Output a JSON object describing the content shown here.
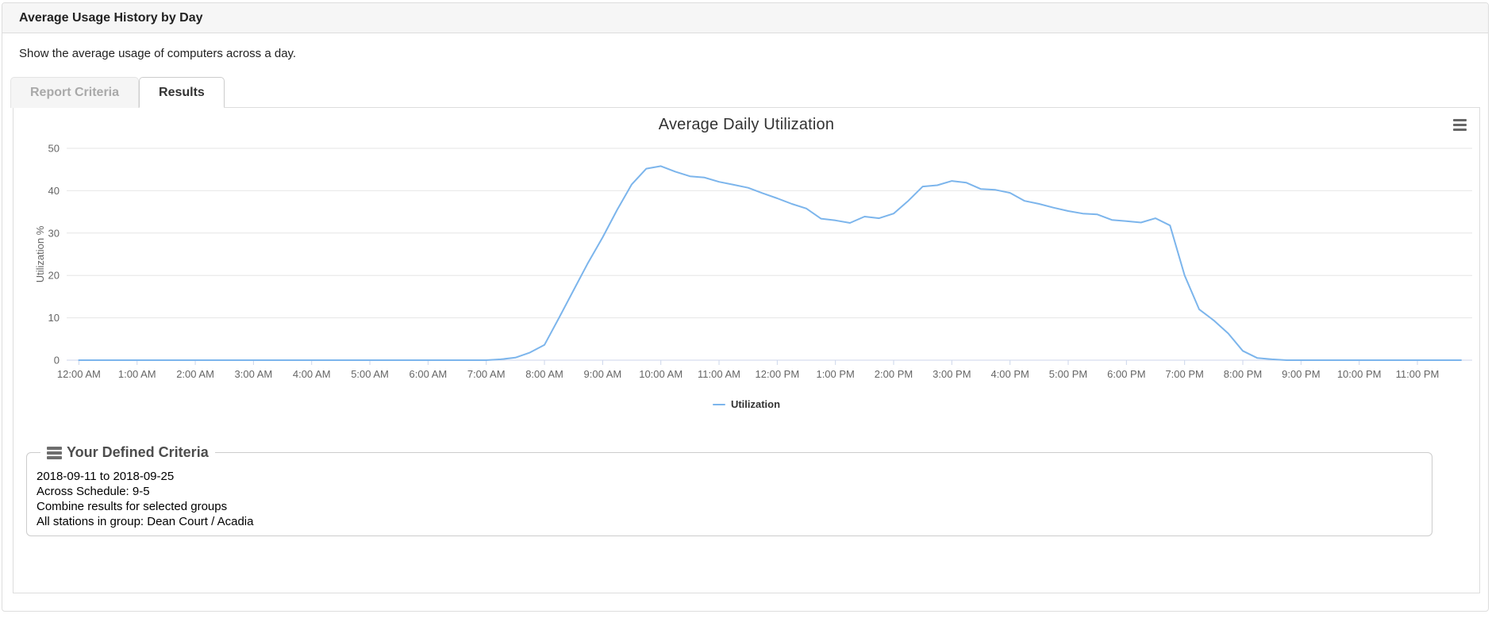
{
  "header": {
    "title": "Average Usage History by Day"
  },
  "description": "Show the average usage of computers across a day.",
  "tabs": [
    {
      "label": "Report Criteria",
      "active": false
    },
    {
      "label": "Results",
      "active": true
    }
  ],
  "chart_data": {
    "type": "line",
    "title": "Average Daily Utilization",
    "xlabel": "",
    "ylabel": "Utilization %",
    "ylim": [
      0,
      50
    ],
    "y_ticks": [
      0,
      10,
      20,
      30,
      40,
      50
    ],
    "x_tick_labels": [
      "12:00 AM",
      "1:00 AM",
      "2:00 AM",
      "3:00 AM",
      "4:00 AM",
      "5:00 AM",
      "6:00 AM",
      "7:00 AM",
      "8:00 AM",
      "9:00 AM",
      "10:00 AM",
      "11:00 AM",
      "12:00 PM",
      "1:00 PM",
      "2:00 PM",
      "3:00 PM",
      "4:00 PM",
      "5:00 PM",
      "6:00 PM",
      "7:00 PM",
      "8:00 PM",
      "9:00 PM",
      "10:00 PM",
      "11:00 PM"
    ],
    "grid": true,
    "legend_position": "bottom",
    "legend": [
      "Utilization"
    ],
    "colors": {
      "line": "#7cb5ec",
      "grid": "#e6e6e6",
      "axis": "#ccd6eb",
      "axis_text": "#666666",
      "title_text": "#333333"
    },
    "series": [
      {
        "name": "Utilization",
        "points": [
          [
            0,
            0
          ],
          [
            0.25,
            0
          ],
          [
            0.5,
            0
          ],
          [
            0.75,
            0
          ],
          [
            1,
            0
          ],
          [
            1.25,
            0
          ],
          [
            1.5,
            0
          ],
          [
            1.75,
            0
          ],
          [
            2,
            0
          ],
          [
            2.25,
            0
          ],
          [
            2.5,
            0
          ],
          [
            2.75,
            0
          ],
          [
            3,
            0
          ],
          [
            3.25,
            0
          ],
          [
            3.5,
            0
          ],
          [
            3.75,
            0
          ],
          [
            4,
            0
          ],
          [
            4.25,
            0
          ],
          [
            4.5,
            0
          ],
          [
            4.75,
            0
          ],
          [
            5,
            0
          ],
          [
            5.25,
            0
          ],
          [
            5.5,
            0
          ],
          [
            5.75,
            0
          ],
          [
            6,
            0
          ],
          [
            6.25,
            0
          ],
          [
            6.5,
            0
          ],
          [
            6.75,
            0
          ],
          [
            7,
            0
          ],
          [
            7.25,
            0.2
          ],
          [
            7.5,
            0.6
          ],
          [
            7.75,
            1.8
          ],
          [
            8,
            3.6
          ],
          [
            8.25,
            10
          ],
          [
            8.5,
            16.5
          ],
          [
            8.75,
            23
          ],
          [
            9,
            29
          ],
          [
            9.25,
            35.5
          ],
          [
            9.5,
            41.5
          ],
          [
            9.75,
            45.2
          ],
          [
            10,
            45.8
          ],
          [
            10.25,
            44.5
          ],
          [
            10.5,
            43.4
          ],
          [
            10.75,
            43.1
          ],
          [
            11,
            42.1
          ],
          [
            11.25,
            41.4
          ],
          [
            11.5,
            40.7
          ],
          [
            11.75,
            39.4
          ],
          [
            12,
            38.2
          ],
          [
            12.25,
            36.9
          ],
          [
            12.5,
            35.8
          ],
          [
            12.75,
            33.4
          ],
          [
            13,
            33
          ],
          [
            13.25,
            32.4
          ],
          [
            13.5,
            33.9
          ],
          [
            13.75,
            33.5
          ],
          [
            14,
            34.6
          ],
          [
            14.25,
            37.6
          ],
          [
            14.5,
            41
          ],
          [
            14.75,
            41.3
          ],
          [
            15,
            42.3
          ],
          [
            15.25,
            41.9
          ],
          [
            15.5,
            40.4
          ],
          [
            15.75,
            40.2
          ],
          [
            16,
            39.5
          ],
          [
            16.25,
            37.6
          ],
          [
            16.5,
            36.9
          ],
          [
            16.75,
            36
          ],
          [
            17,
            35.2
          ],
          [
            17.25,
            34.6
          ],
          [
            17.5,
            34.4
          ],
          [
            17.75,
            33.1
          ],
          [
            18,
            32.8
          ],
          [
            18.25,
            32.5
          ],
          [
            18.5,
            33.5
          ],
          [
            18.75,
            31.8
          ],
          [
            19,
            20
          ],
          [
            19.25,
            12
          ],
          [
            19.5,
            9.4
          ],
          [
            19.75,
            6.3
          ],
          [
            20,
            2.2
          ],
          [
            20.25,
            0.5
          ],
          [
            20.5,
            0.2
          ],
          [
            20.75,
            0
          ],
          [
            21,
            0
          ],
          [
            21.25,
            0
          ],
          [
            21.5,
            0
          ],
          [
            21.75,
            0
          ],
          [
            22,
            0
          ],
          [
            22.25,
            0
          ],
          [
            22.5,
            0
          ],
          [
            22.75,
            0
          ],
          [
            23,
            0
          ],
          [
            23.25,
            0
          ],
          [
            23.5,
            0
          ],
          [
            23.75,
            0
          ]
        ]
      }
    ]
  },
  "criteria": {
    "title": "Your Defined Criteria",
    "lines": [
      "2018-09-11 to 2018-09-25",
      "Across Schedule: 9-5",
      "Combine results for selected groups",
      "All stations in group: Dean Court / Acadia"
    ]
  }
}
